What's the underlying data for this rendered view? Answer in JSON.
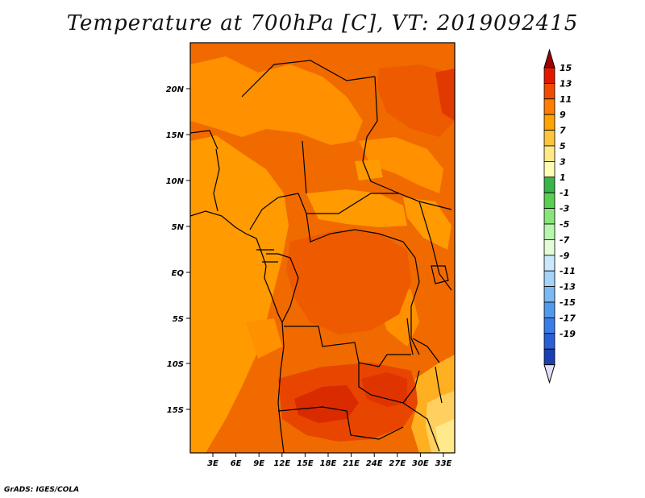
{
  "title": "Temperature at 700hPa [C], VT: 2019092415",
  "credit": "GrADS: IGES/COLA",
  "map": {
    "lat_labels": [
      "20N",
      "15N",
      "10N",
      "5N",
      "EQ",
      "5S",
      "10S",
      "15S"
    ],
    "lon_labels": [
      "3E",
      "6E",
      "9E",
      "12E",
      "15E",
      "18E",
      "21E",
      "24E",
      "27E",
      "30E",
      "33E"
    ]
  },
  "colorbar": {
    "labels": [
      "15",
      "13",
      "11",
      "9",
      "7",
      "5",
      "3",
      "1",
      "-1",
      "-3",
      "-5",
      "-7",
      "-9",
      "-11",
      "-13",
      "-15",
      "-17",
      "-19"
    ],
    "colors": [
      "#a00000",
      "#e11800",
      "#f04b00",
      "#ff7d00",
      "#ffa300",
      "#ffc43c",
      "#ffe989",
      "#fffcb6",
      "#39b34a",
      "#59cf51",
      "#87e67b",
      "#b7f6ad",
      "#e2fdd7",
      "#c9e8fb",
      "#a5d3f8",
      "#7ab9f2",
      "#5399ec",
      "#3a7de8",
      "#2960d8",
      "#1a3fb4",
      "#0a1e82",
      "#e0e0f8"
    ]
  },
  "icons": {
    "arrow_up": "colorbar-max-arrow",
    "arrow_down": "colorbar-min-arrow"
  }
}
